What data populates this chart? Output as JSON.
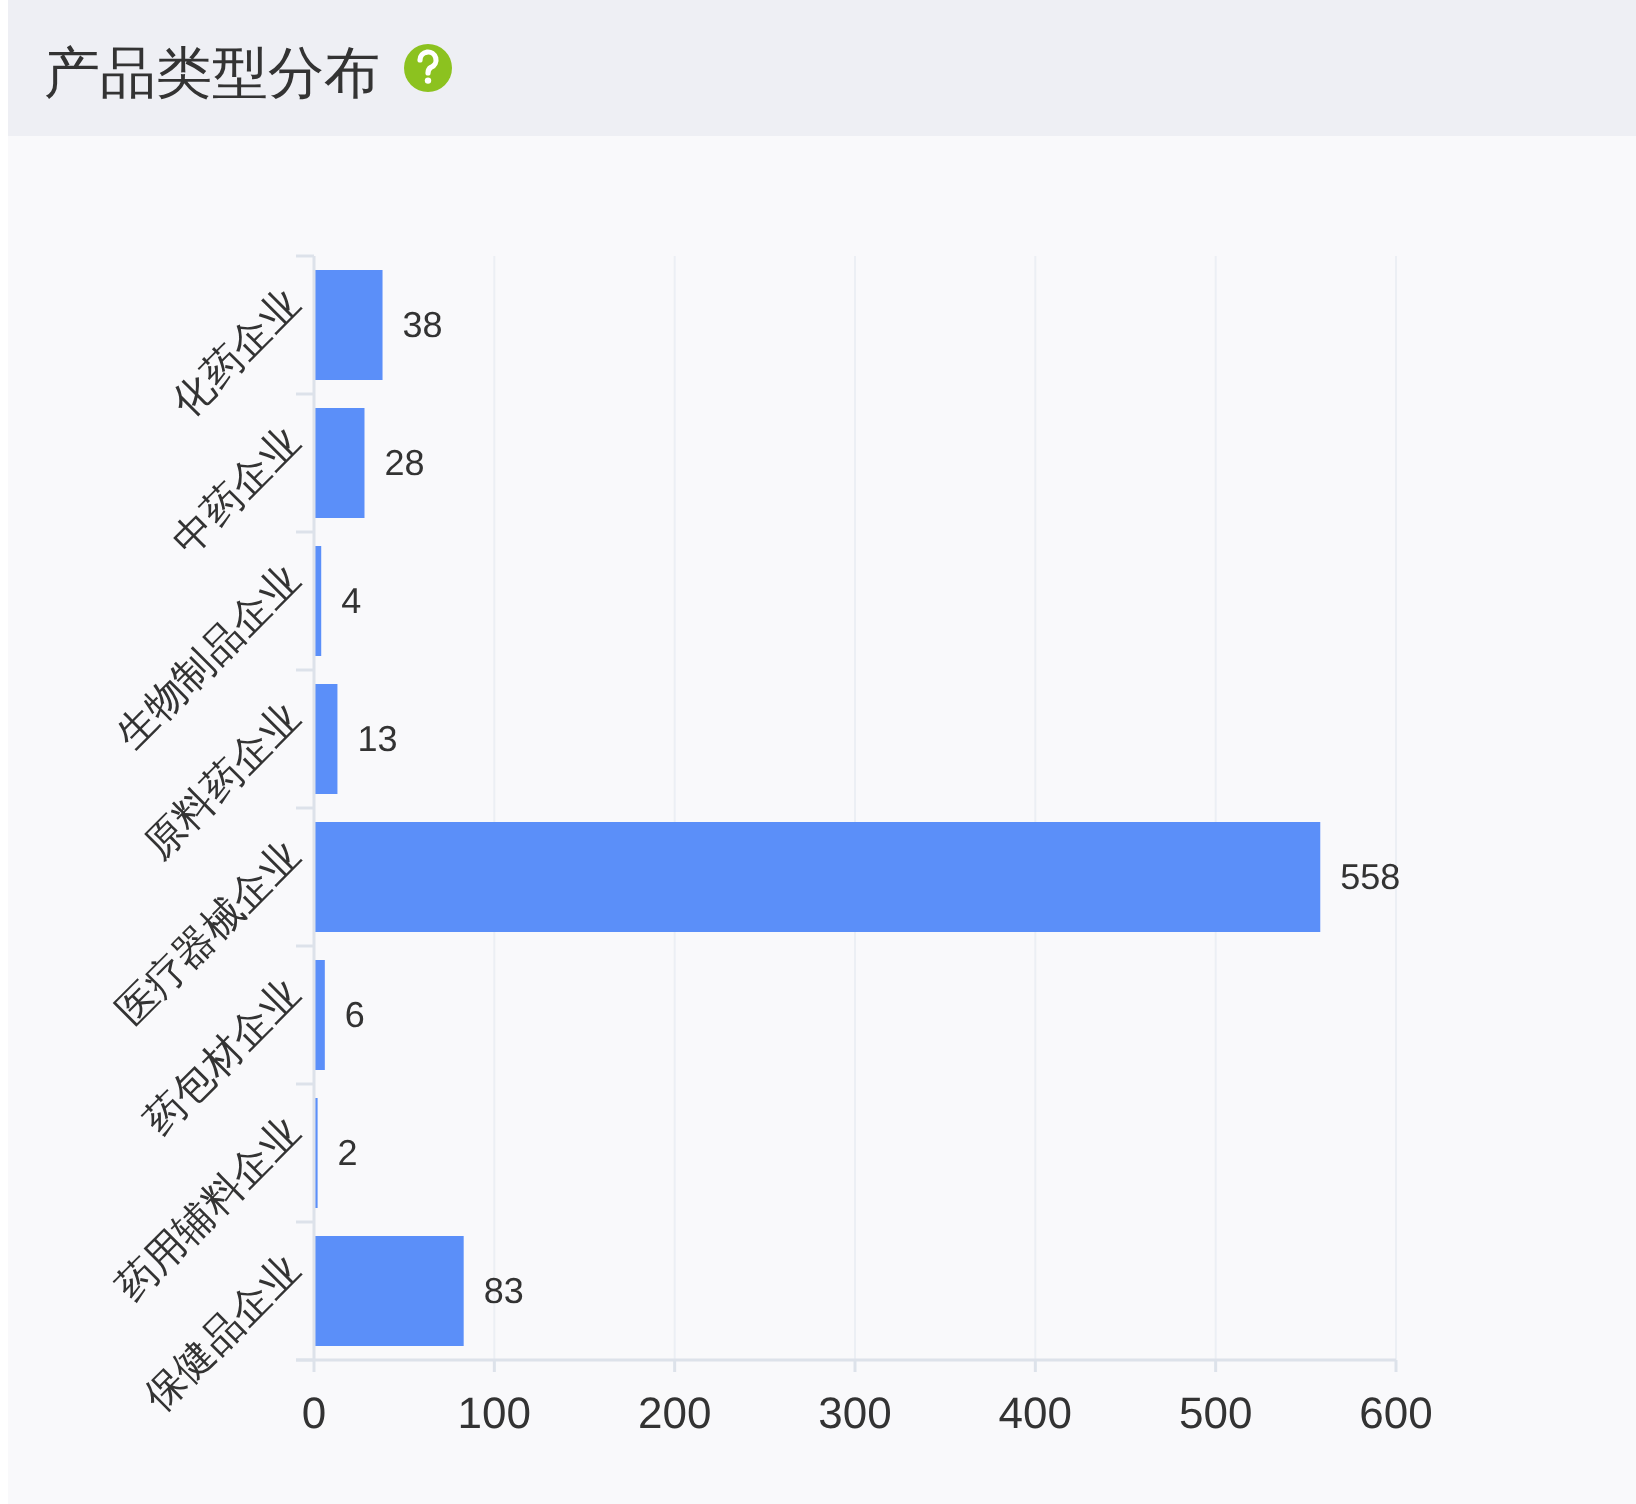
{
  "chart_data": {
    "type": "bar",
    "orientation": "horizontal",
    "title": "产品类型分布",
    "categories": [
      "化药企业",
      "中药企业",
      "生物制品企业",
      "原料药企业",
      "医疗器械企业",
      "药包材企业",
      "药用辅料企业",
      "保健品企业"
    ],
    "values": [
      38,
      28,
      4,
      13,
      558,
      6,
      2,
      83
    ],
    "color": "#5b8ff9",
    "xlim": [
      0,
      600
    ],
    "xticks": [
      0,
      100,
      200,
      300,
      400,
      500,
      600
    ],
    "grid": "x",
    "data_labels": true
  }
}
